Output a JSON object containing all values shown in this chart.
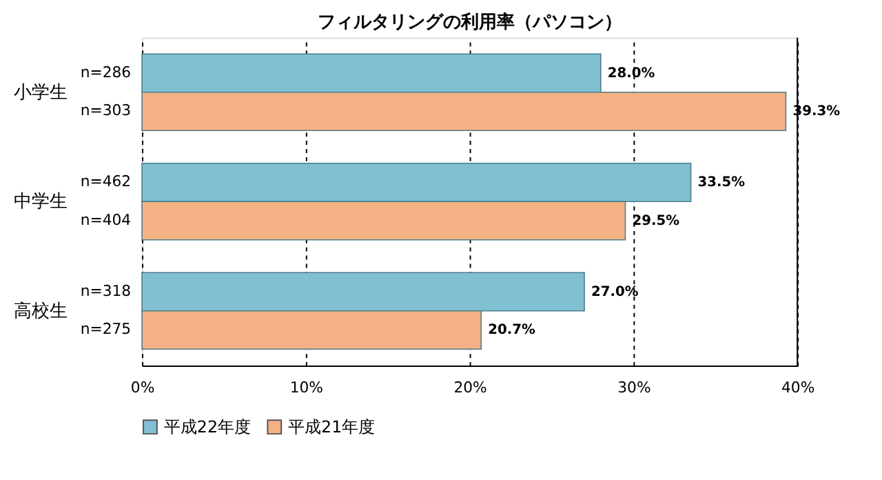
{
  "chart_data": {
    "type": "bar",
    "orientation": "horizontal",
    "title": "フィルタリングの利用率（パソコン）",
    "categories": [
      "小学生",
      "中学生",
      "高校生"
    ],
    "series": [
      {
        "name": "平成22年度",
        "color": "#80c0d2",
        "values": [
          28.0,
          33.5,
          27.0
        ],
        "value_labels": [
          "28.0%",
          "33.5%",
          "27.0%"
        ]
      },
      {
        "name": "平成21年度",
        "color": "#f4b183",
        "values": [
          39.3,
          29.5,
          20.7
        ],
        "value_labels": [
          "39.3%",
          "29.5%",
          "20.7%"
        ]
      }
    ],
    "xlim": [
      0,
      40
    ],
    "xticks": [
      {
        "value": 0,
        "label": "0%"
      },
      {
        "value": 10,
        "label": "10%"
      },
      {
        "value": 20,
        "label": "20%"
      },
      {
        "value": 30,
        "label": "30%"
      },
      {
        "value": 40,
        "label": "40%"
      }
    ],
    "annotations": [
      "n=286",
      "n=303",
      "n=462",
      "n=404",
      "n=318",
      "n=275"
    ],
    "grid": "x",
    "legend": "bottom"
  }
}
